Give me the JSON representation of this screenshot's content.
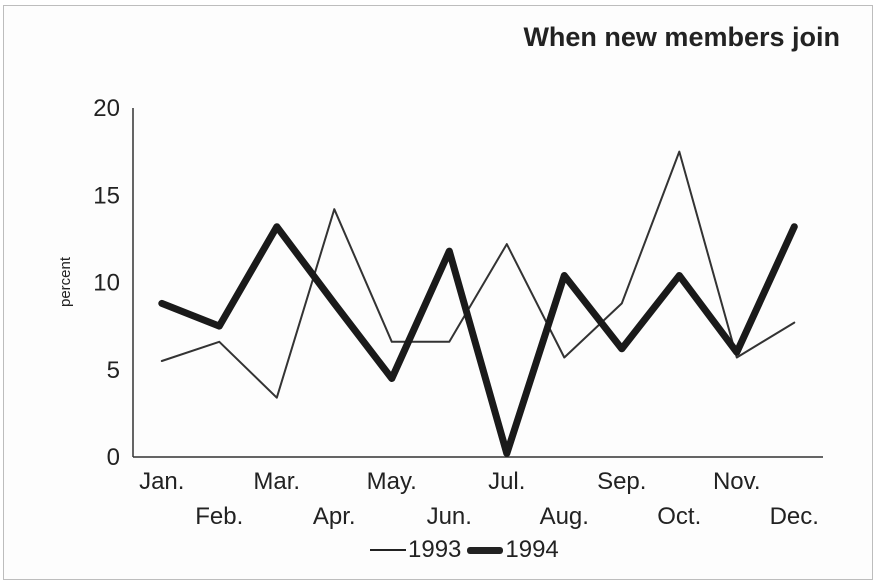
{
  "chart_data": {
    "type": "line",
    "title": "When new members join",
    "xlabel": "",
    "ylabel": "percent",
    "categories": [
      "Jan.",
      "Feb.",
      "Mar.",
      "Apr.",
      "May.",
      "Jun.",
      "Jul.",
      "Aug.",
      "Sep.",
      "Oct.",
      "Nov.",
      "Dec."
    ],
    "y_ticks": [
      "0",
      "5",
      "10",
      "15",
      "20"
    ],
    "ylim": [
      0,
      20
    ],
    "grid": false,
    "legend_position": "bottom",
    "series": [
      {
        "name": "1993",
        "values": [
          5.5,
          6.6,
          3.4,
          14.2,
          6.6,
          6.6,
          12.2,
          5.7,
          8.8,
          17.5,
          5.7,
          7.7
        ],
        "color": "#333333",
        "style": "thin"
      },
      {
        "name": "1994",
        "values": [
          8.8,
          7.5,
          13.2,
          8.8,
          4.5,
          11.8,
          0.2,
          10.4,
          6.2,
          10.4,
          6.0,
          13.2
        ],
        "color": "#1a1a1a",
        "style": "thick"
      }
    ]
  }
}
